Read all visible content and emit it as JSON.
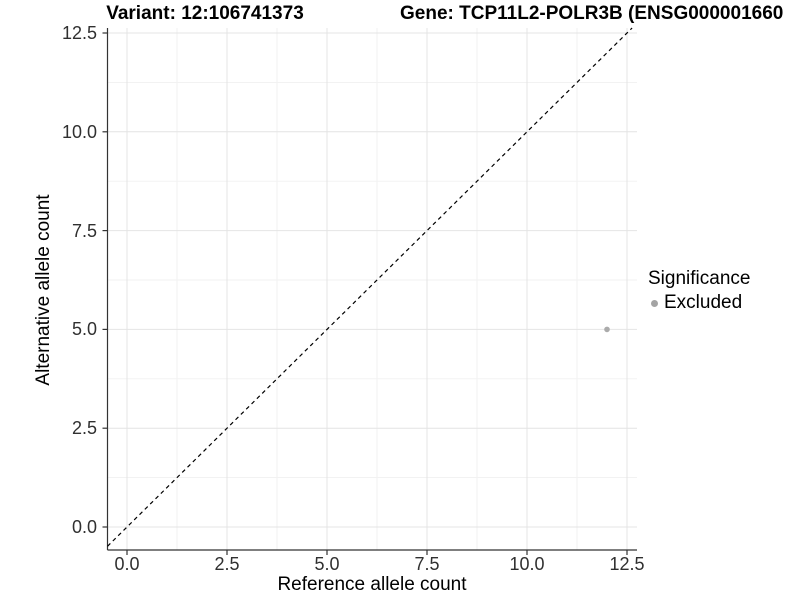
{
  "figure": {
    "title_left": "Variant: 12:106741373",
    "title_right": "Gene: TCP11L2-POLR3B (ENSG000001660"
  },
  "chart_data": {
    "type": "scatter",
    "title": "Variant: 12:106741373   Gene: TCP11L2-POLR3B (ENSG000001660",
    "xlabel": "Reference allele count",
    "ylabel": "Alternative allele count",
    "xlim": [
      -0.5,
      12.7
    ],
    "ylim": [
      -0.58,
      12.63
    ],
    "x_ticks": [
      0,
      2.5,
      5,
      7.5,
      10,
      12.5
    ],
    "y_ticks": [
      0,
      2.5,
      5,
      7.5,
      10,
      12.5
    ],
    "grid": "major and minor, light gray on white",
    "reference_line": {
      "type": "identity y=x",
      "style": "dashed",
      "color": "#000000"
    },
    "series": [
      {
        "name": "Excluded",
        "color": "#ababab",
        "points": [
          {
            "x": 12,
            "y": 5
          }
        ]
      }
    ],
    "legend": {
      "title": "Significance",
      "position": "right",
      "entries": [
        {
          "label": "Excluded",
          "color": "#a4a4a4"
        }
      ]
    },
    "colors": {
      "axis_line": "#333333",
      "tick_label": "#303030",
      "grid_major": "#e4e4e4",
      "grid_minor": "#f1f1f1",
      "point": "#ababab",
      "identity_line": "#000000"
    }
  }
}
